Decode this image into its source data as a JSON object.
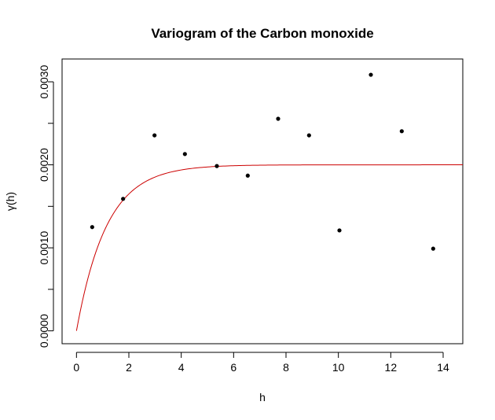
{
  "chart_data": {
    "type": "scatter",
    "title": "Variogram of the Carbon monoxide",
    "xlabel": "h",
    "ylabel": "γ(h)",
    "xlim": [
      -0.55,
      14.75
    ],
    "ylim": [
      -0.000155,
      0.003275
    ],
    "x_ticks": [
      0,
      2,
      4,
      6,
      8,
      10,
      12,
      14
    ],
    "x_tick_labels": [
      "0",
      "2",
      "4",
      "6",
      "8",
      "10",
      "12",
      "14"
    ],
    "y_ticks": [
      0,
      0.0005,
      0.001,
      0.0015,
      0.002,
      0.0025,
      0.003
    ],
    "y_tick_labels": [
      "0.0000",
      "",
      "0.0010",
      "",
      "0.0020",
      "",
      "0.0030"
    ],
    "grid": false,
    "points": {
      "x": [
        0.6,
        1.78,
        2.98,
        4.14,
        5.36,
        6.54,
        7.7,
        8.88,
        10.04,
        11.24,
        12.42,
        13.62
      ],
      "y": [
        0.00125,
        0.00159,
        0.002355,
        0.00213,
        0.001985,
        0.00187,
        0.002555,
        0.002355,
        0.00121,
        0.003085,
        0.002405,
        0.00099
      ]
    },
    "model_curve": {
      "type": "exponential",
      "nugget": 0,
      "sill": 0.002,
      "range": 1.15,
      "x_max": 14.75,
      "color": "#cc0000"
    },
    "point_color": "#000000"
  }
}
